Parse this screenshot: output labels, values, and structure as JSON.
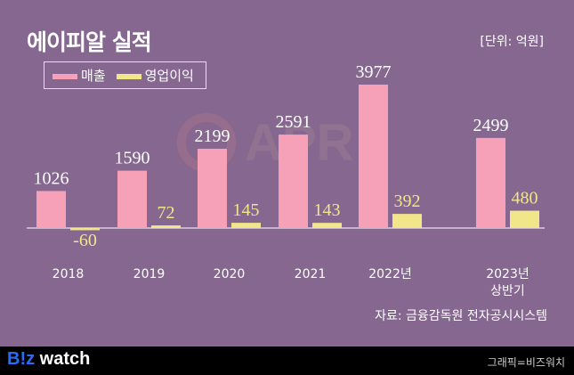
{
  "title": "에이피알 실적",
  "unit": "[단위: 억원]",
  "source": "자료: 금융감독원 전자공시시스템",
  "logo": "B!z watch",
  "credit": "그래픽=비즈워치",
  "watermark": "APR",
  "colors": {
    "background": "#866790",
    "revenue": "#f7a1b9",
    "operating_profit": "#f2e68a"
  },
  "chart_data": {
    "type": "bar",
    "title": "에이피알 실적",
    "categories": [
      "2018",
      "2019",
      "2020",
      "2021",
      "2022년",
      "2023년\n상반기"
    ],
    "series": [
      {
        "name": "매출",
        "values": [
          1026,
          1590,
          2199,
          2591,
          3977,
          2499
        ]
      },
      {
        "name": "영업이익",
        "values": [
          -60,
          72,
          145,
          143,
          392,
          480
        ]
      }
    ],
    "legend": "top-left",
    "grid": false
  }
}
